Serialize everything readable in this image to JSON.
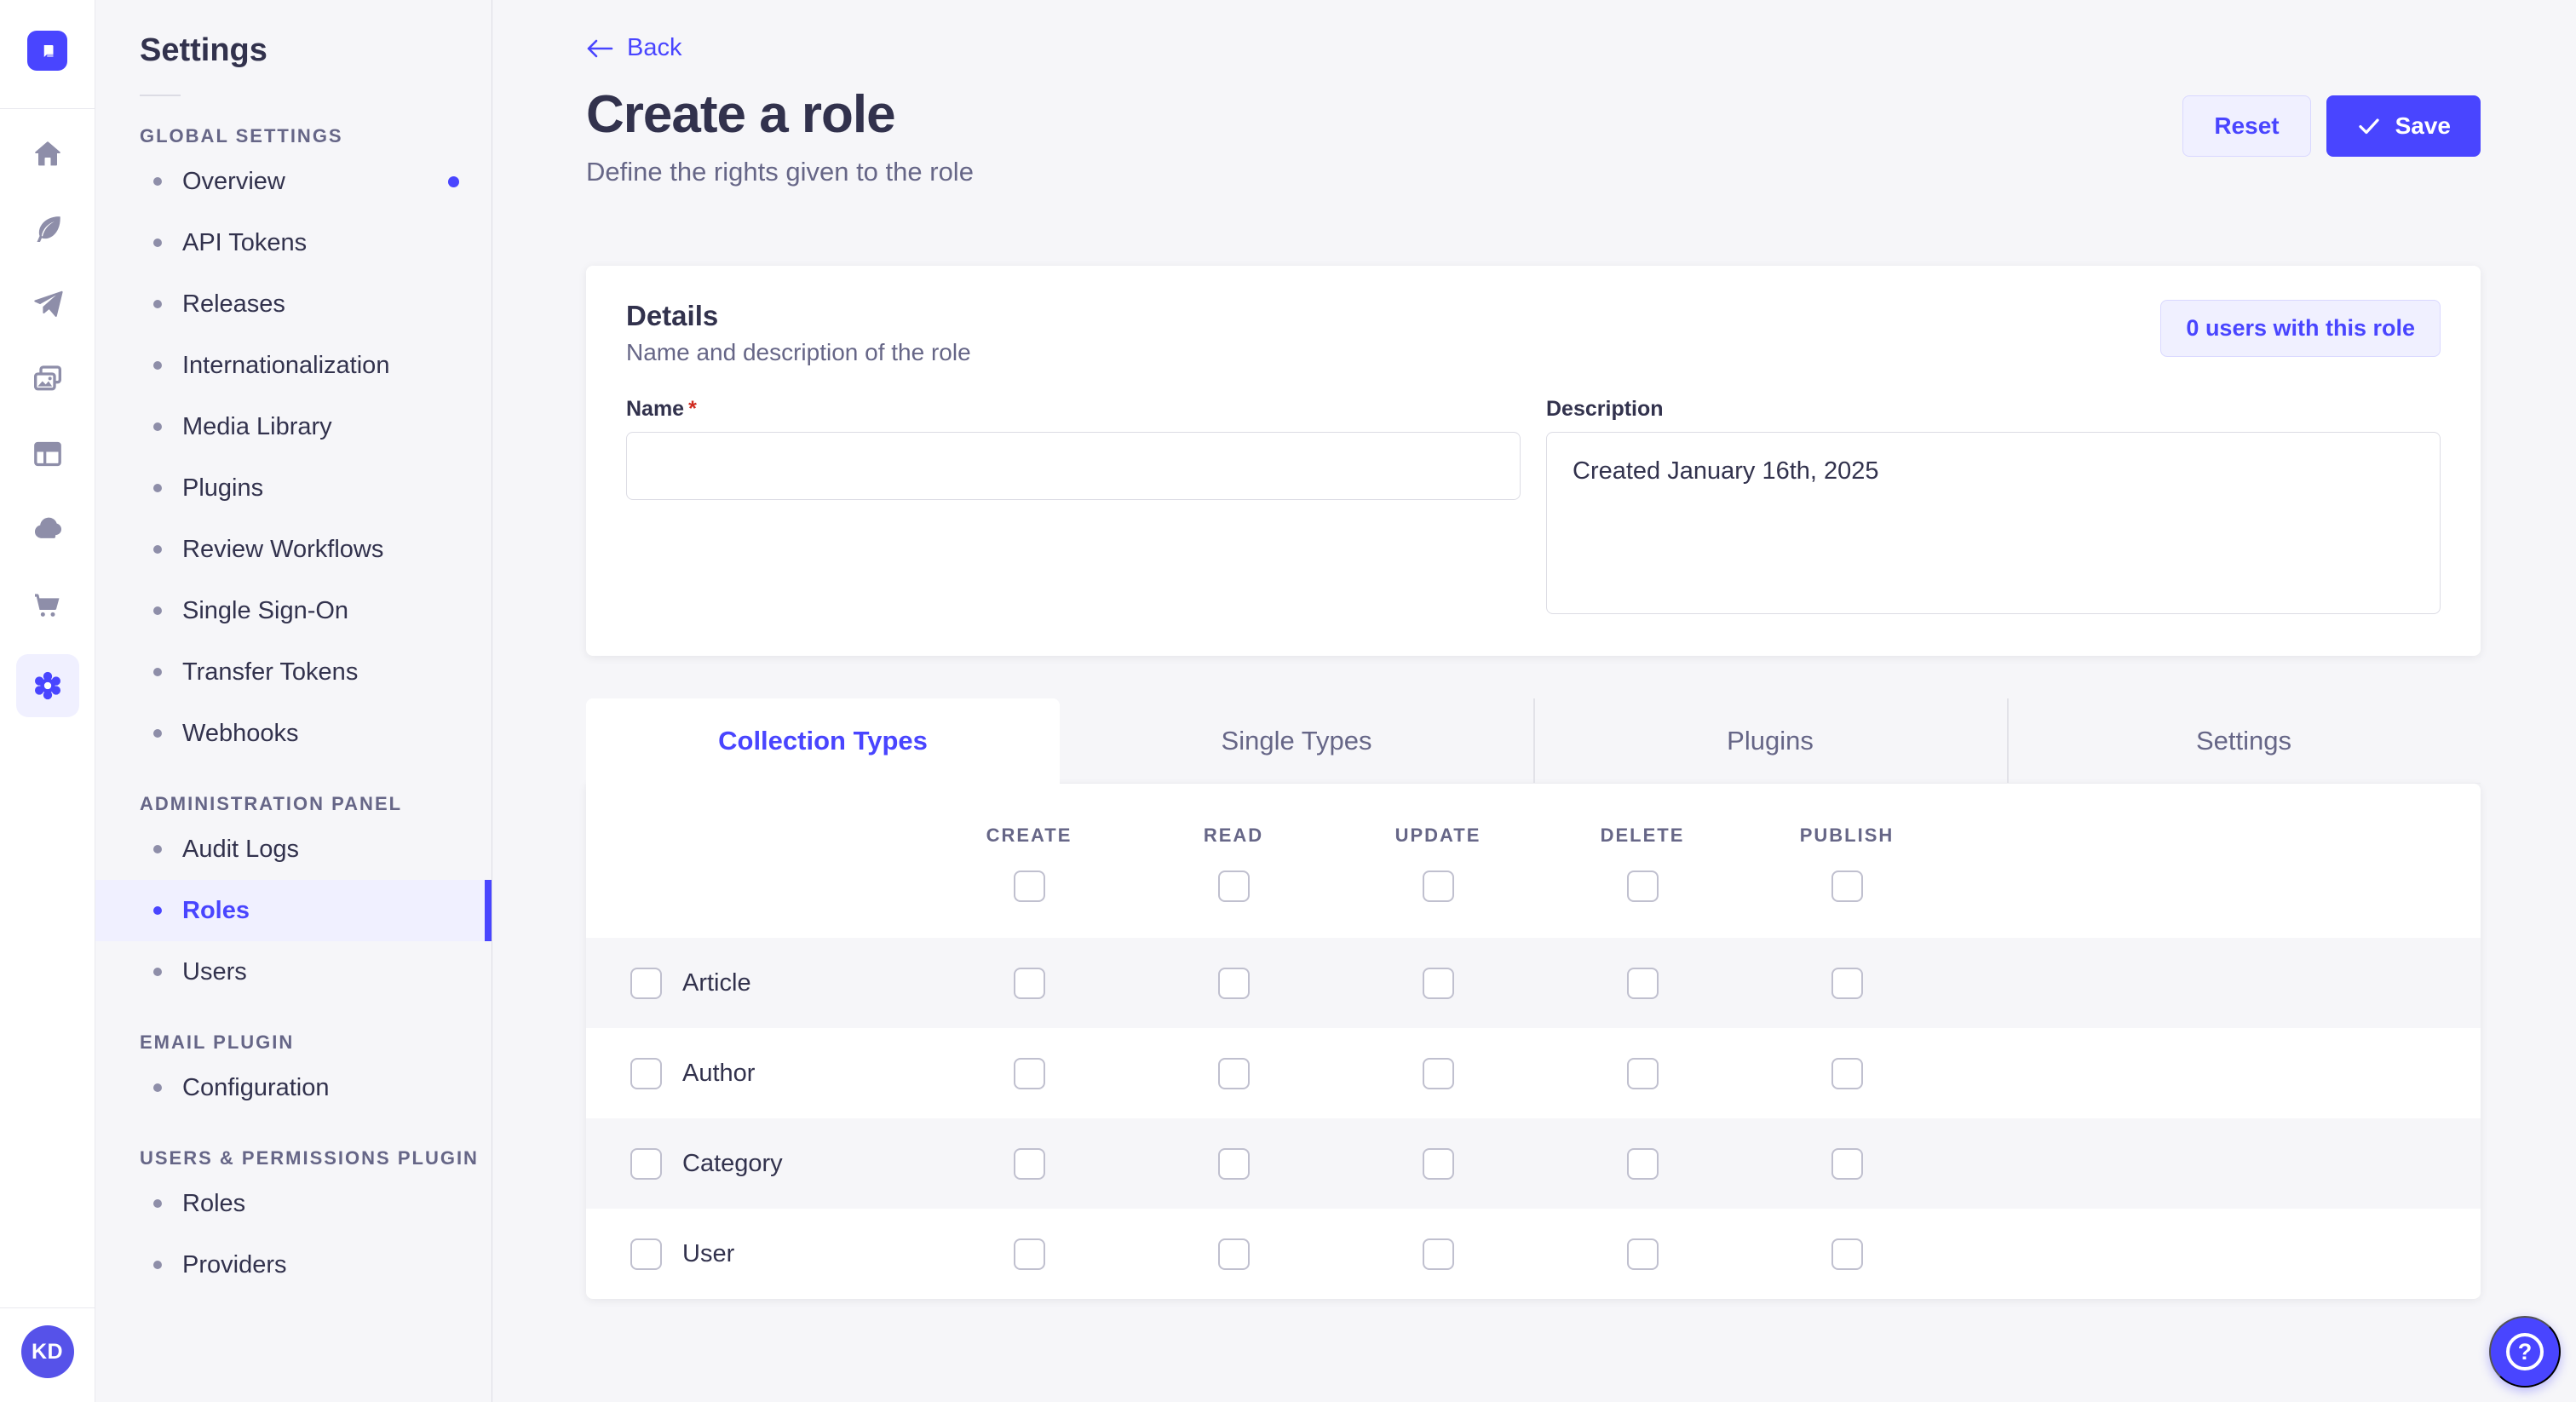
{
  "colors": {
    "primary": "#4945ff",
    "primary_light": "#f0f0ff",
    "primary_border": "#d9d8ff",
    "text_dark": "#32324d",
    "text_gray": "#666687",
    "page_bg": "#f6f6f9",
    "avatar_bg": "#5652e9",
    "required_red": "#d02b20"
  },
  "rail": {
    "logo": "strapi-logo",
    "icons": [
      {
        "key": "home",
        "active": false
      },
      {
        "key": "content-manager",
        "active": false
      },
      {
        "key": "releases",
        "active": false
      },
      {
        "key": "media-library",
        "active": false
      },
      {
        "key": "content-type-builder",
        "active": false
      },
      {
        "key": "cloud",
        "active": false
      },
      {
        "key": "marketplace",
        "active": false
      },
      {
        "key": "settings",
        "active": true
      }
    ],
    "avatar_initials": "KD"
  },
  "sidebar": {
    "title": "Settings",
    "sections": [
      {
        "label": "GLOBAL SETTINGS",
        "items": [
          {
            "label": "Overview",
            "notification": true
          },
          {
            "label": "API Tokens"
          },
          {
            "label": "Releases"
          },
          {
            "label": "Internationalization"
          },
          {
            "label": "Media Library"
          },
          {
            "label": "Plugins"
          },
          {
            "label": "Review Workflows"
          },
          {
            "label": "Single Sign-On"
          },
          {
            "label": "Transfer Tokens"
          },
          {
            "label": "Webhooks"
          }
        ]
      },
      {
        "label": "ADMINISTRATION PANEL",
        "items": [
          {
            "label": "Audit Logs"
          },
          {
            "label": "Roles",
            "active": true
          },
          {
            "label": "Users"
          }
        ]
      },
      {
        "label": "EMAIL PLUGIN",
        "items": [
          {
            "label": "Configuration"
          }
        ]
      },
      {
        "label": "USERS & PERMISSIONS PLUGIN",
        "items": [
          {
            "label": "Roles"
          },
          {
            "label": "Providers"
          }
        ]
      }
    ]
  },
  "header": {
    "back_label": "Back",
    "title": "Create a role",
    "subtitle": "Define the rights given to the role",
    "reset_label": "Reset",
    "save_label": "Save"
  },
  "details": {
    "title": "Details",
    "subtitle": "Name and description of the role",
    "users_badge": "0 users with this role",
    "name_label": "Name",
    "required_mark": "*",
    "name_value": "",
    "description_label": "Description",
    "description_value": "Created January 16th, 2025"
  },
  "permissions": {
    "tabs": [
      {
        "label": "Collection Types",
        "active": true
      },
      {
        "label": "Single Types"
      },
      {
        "label": "Plugins"
      },
      {
        "label": "Settings"
      }
    ],
    "columns": [
      "CREATE",
      "READ",
      "UPDATE",
      "DELETE",
      "PUBLISH"
    ],
    "rows": [
      {
        "label": "Article"
      },
      {
        "label": "Author"
      },
      {
        "label": "Category"
      },
      {
        "label": "User"
      }
    ],
    "all_checked": false
  },
  "help": {
    "glyph": "?"
  }
}
